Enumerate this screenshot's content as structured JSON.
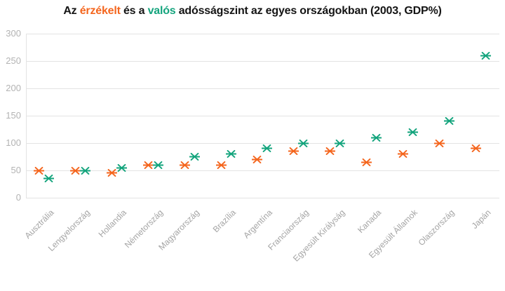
{
  "title": {
    "prefix": "Az ",
    "perceived_label": "érzékelt",
    "middle": " és a ",
    "real_label": "valós",
    "suffix": " adósságszint az egyes országokban (2003, GDP%)"
  },
  "colors": {
    "perceived": "#f4661e",
    "real": "#14a47d",
    "grid": "#e3e3e3",
    "tick_label": "#b3b3b3",
    "category_label": "#a4a4a4",
    "title_text": "#141414"
  },
  "chart_data": {
    "type": "scatter",
    "title": "Az érzékelt és a valós adósságszint az egyes országokban (2003, GDP%)",
    "categories": [
      "Ausztrália",
      "Lengyelország",
      "Hollandia",
      "Németország",
      "Magyarország",
      "Brazília",
      "Argentína",
      "Franciaország",
      "Egyesült Királyság",
      "Kanada",
      "Egyesült Államok",
      "Olaszország",
      "Japán"
    ],
    "series": [
      {
        "name": "érzékelt",
        "color": "#f4661e",
        "values": [
          50,
          50,
          45,
          60,
          60,
          60,
          70,
          85,
          85,
          65,
          80,
          100,
          90
        ]
      },
      {
        "name": "valós",
        "color": "#14a47d",
        "values": [
          35,
          50,
          55,
          60,
          75,
          80,
          90,
          100,
          100,
          110,
          120,
          140,
          260
        ]
      }
    ],
    "xlabel": "",
    "ylabel": "",
    "ylim": [
      0,
      300
    ],
    "yticks": [
      0,
      50,
      100,
      150,
      200,
      250,
      300
    ],
    "grid": true,
    "legend_position": "in-title",
    "marker": "asterisk"
  }
}
